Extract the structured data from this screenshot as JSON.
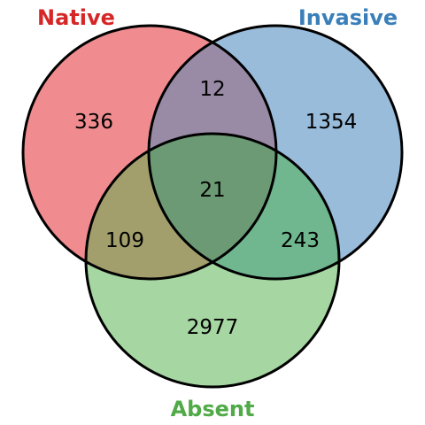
{
  "sets": {
    "native": {
      "label": "Native",
      "fill": "#f08c8f",
      "label_color": "#d62728"
    },
    "invasive": {
      "label": "Invasive",
      "fill": "#99bcdb",
      "label_color": "#3a7fb9"
    },
    "absent": {
      "label": "Absent",
      "fill": "#a6d6a2",
      "label_color": "#4faa47"
    }
  },
  "overlap_colors": {
    "native_invasive": "#998aa6",
    "native_absent": "#a29f6c",
    "invasive_absent": "#70b78f",
    "all": "#6b9a74"
  },
  "regions": {
    "native_only": "336",
    "invasive_only": "1354",
    "absent_only": "2977",
    "native_invasive": "12",
    "native_absent": "109",
    "invasive_absent": "243",
    "all_three": "21"
  }
}
